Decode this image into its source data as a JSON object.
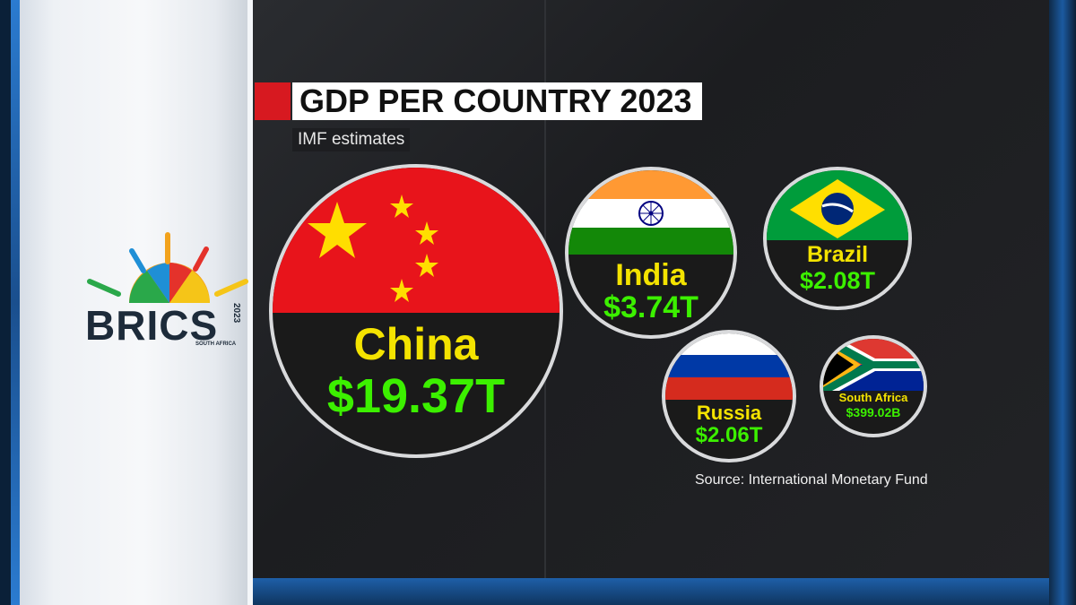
{
  "header": {
    "title": "GDP PER COUNTRY 2023",
    "subtitle": "IMF estimates"
  },
  "logo": {
    "name": "BRICS",
    "year": "2023",
    "location": "SOUTH AFRICA"
  },
  "countries": [
    {
      "name": "China",
      "value": "$19.37T"
    },
    {
      "name": "India",
      "value": "$3.74T"
    },
    {
      "name": "Brazil",
      "value": "$2.08T"
    },
    {
      "name": "Russia",
      "value": "$2.06T"
    },
    {
      "name": "South Africa",
      "value": "$399.02B"
    }
  ],
  "source": "Source: International Monetary Fund",
  "colors": {
    "accent_red": "#d71920",
    "label_yellow": "#f4e300",
    "value_green": "#3cf000"
  }
}
